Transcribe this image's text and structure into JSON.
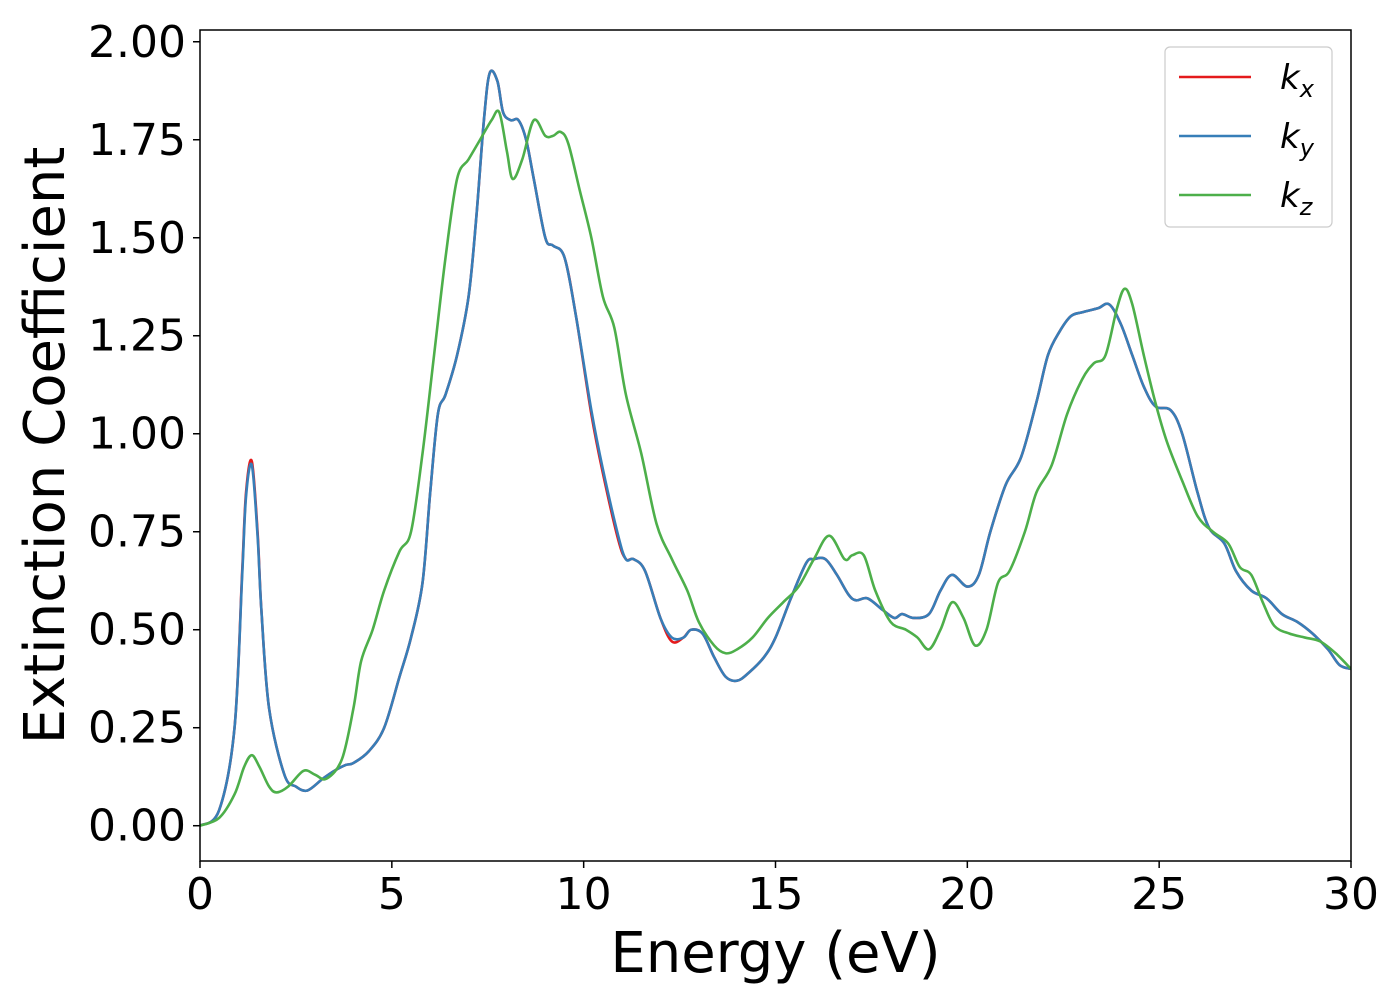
{
  "chart_data": {
    "type": "line",
    "xlabel": "Energy (eV)",
    "ylabel": "Extinction Coefficient",
    "xlim": [
      0,
      30
    ],
    "ylim": [
      -0.09,
      2.03
    ],
    "xticks": [
      0,
      5,
      10,
      15,
      20,
      25,
      30
    ],
    "yticks": [
      0.0,
      0.25,
      0.5,
      0.75,
      1.0,
      1.25,
      1.5,
      1.75,
      2.0
    ],
    "xtick_labels": [
      "0",
      "5",
      "10",
      "15",
      "20",
      "25",
      "30"
    ],
    "ytick_labels": [
      "0.00",
      "0.25",
      "0.50",
      "0.75",
      "1.00",
      "1.25",
      "1.50",
      "1.75",
      "2.00"
    ],
    "grid": false,
    "legend_position": "top-right",
    "series": [
      {
        "name": "k",
        "subscript": "x",
        "color": "#e41a1c",
        "x": [
          0,
          0.5,
          0.9,
          1.1,
          1.2,
          1.35,
          1.5,
          1.6,
          1.8,
          2.2,
          2.5,
          2.8,
          3.2,
          3.5,
          3.8,
          4.0,
          4.4,
          4.8,
          5.2,
          5.5,
          5.8,
          6.0,
          6.2,
          6.4,
          6.7,
          7.0,
          7.2,
          7.4,
          7.55,
          7.75,
          7.9,
          8.1,
          8.3,
          8.5,
          8.7,
          9.0,
          9.2,
          9.5,
          9.8,
          10.2,
          10.5,
          10.9,
          11.1,
          11.3,
          11.6,
          12.0,
          12.3,
          12.6,
          12.8,
          13.1,
          13.4,
          13.7,
          14.0,
          14.3,
          14.7,
          15.0,
          15.4,
          15.8,
          16.0,
          16.3,
          16.6,
          16.9,
          17.1,
          17.4,
          17.8,
          18.1,
          18.3,
          18.6,
          19.0,
          19.3,
          19.6,
          20.0,
          20.3,
          20.6,
          21.0,
          21.4,
          21.8,
          22.1,
          22.4,
          22.7,
          23.0,
          23.4,
          23.7,
          24.0,
          24.3,
          24.6,
          24.9,
          25.3,
          25.6,
          26.0,
          26.3,
          26.7,
          27.0,
          27.4,
          27.8,
          28.2,
          28.6,
          29.0,
          29.4,
          29.7,
          30.0
        ],
        "y": [
          0.0,
          0.04,
          0.25,
          0.65,
          0.85,
          0.93,
          0.75,
          0.55,
          0.3,
          0.13,
          0.1,
          0.09,
          0.12,
          0.14,
          0.155,
          0.16,
          0.19,
          0.25,
          0.38,
          0.48,
          0.62,
          0.85,
          1.05,
          1.1,
          1.2,
          1.35,
          1.55,
          1.8,
          1.92,
          1.9,
          1.82,
          1.8,
          1.8,
          1.75,
          1.65,
          1.5,
          1.48,
          1.45,
          1.3,
          1.05,
          0.9,
          0.73,
          0.68,
          0.68,
          0.65,
          0.53,
          0.47,
          0.48,
          0.5,
          0.49,
          0.43,
          0.38,
          0.37,
          0.39,
          0.43,
          0.48,
          0.58,
          0.67,
          0.68,
          0.68,
          0.64,
          0.59,
          0.575,
          0.58,
          0.55,
          0.53,
          0.54,
          0.53,
          0.54,
          0.6,
          0.64,
          0.61,
          0.64,
          0.75,
          0.87,
          0.94,
          1.08,
          1.2,
          1.26,
          1.3,
          1.31,
          1.32,
          1.33,
          1.28,
          1.2,
          1.12,
          1.07,
          1.06,
          1.0,
          0.85,
          0.76,
          0.72,
          0.65,
          0.6,
          0.58,
          0.54,
          0.52,
          0.49,
          0.45,
          0.41,
          0.4
        ]
      },
      {
        "name": "k",
        "subscript": "y",
        "color": "#377eb8",
        "x": [
          0,
          0.5,
          0.9,
          1.1,
          1.2,
          1.35,
          1.5,
          1.6,
          1.8,
          2.2,
          2.5,
          2.8,
          3.2,
          3.5,
          3.8,
          4.0,
          4.4,
          4.8,
          5.2,
          5.5,
          5.8,
          6.0,
          6.2,
          6.4,
          6.7,
          7.0,
          7.2,
          7.4,
          7.55,
          7.75,
          7.9,
          8.1,
          8.3,
          8.5,
          8.7,
          9.0,
          9.2,
          9.5,
          9.8,
          10.2,
          10.5,
          10.9,
          11.1,
          11.3,
          11.6,
          12.0,
          12.3,
          12.6,
          12.8,
          13.1,
          13.4,
          13.7,
          14.0,
          14.3,
          14.7,
          15.0,
          15.4,
          15.8,
          16.0,
          16.3,
          16.6,
          16.9,
          17.1,
          17.4,
          17.8,
          18.1,
          18.3,
          18.6,
          19.0,
          19.3,
          19.6,
          20.0,
          20.3,
          20.6,
          21.0,
          21.4,
          21.8,
          22.1,
          22.4,
          22.7,
          23.0,
          23.4,
          23.7,
          24.0,
          24.3,
          24.6,
          24.9,
          25.3,
          25.6,
          26.0,
          26.3,
          26.7,
          27.0,
          27.4,
          27.8,
          28.2,
          28.6,
          29.0,
          29.4,
          29.7,
          30.0
        ],
        "y": [
          0.0,
          0.04,
          0.25,
          0.64,
          0.84,
          0.92,
          0.74,
          0.55,
          0.3,
          0.13,
          0.1,
          0.09,
          0.12,
          0.14,
          0.155,
          0.16,
          0.19,
          0.25,
          0.38,
          0.48,
          0.62,
          0.85,
          1.05,
          1.1,
          1.2,
          1.35,
          1.55,
          1.8,
          1.92,
          1.9,
          1.82,
          1.8,
          1.8,
          1.75,
          1.65,
          1.5,
          1.48,
          1.45,
          1.3,
          1.06,
          0.91,
          0.74,
          0.68,
          0.68,
          0.65,
          0.53,
          0.48,
          0.48,
          0.5,
          0.49,
          0.43,
          0.38,
          0.37,
          0.39,
          0.43,
          0.48,
          0.58,
          0.67,
          0.68,
          0.68,
          0.64,
          0.59,
          0.575,
          0.58,
          0.55,
          0.53,
          0.54,
          0.53,
          0.54,
          0.6,
          0.64,
          0.61,
          0.64,
          0.75,
          0.87,
          0.94,
          1.08,
          1.2,
          1.26,
          1.3,
          1.31,
          1.32,
          1.33,
          1.28,
          1.2,
          1.12,
          1.07,
          1.06,
          1.0,
          0.85,
          0.76,
          0.72,
          0.65,
          0.6,
          0.58,
          0.54,
          0.52,
          0.49,
          0.45,
          0.41,
          0.4
        ]
      },
      {
        "name": "k",
        "subscript": "z",
        "color": "#4daf4a",
        "x": [
          0,
          0.5,
          0.9,
          1.15,
          1.35,
          1.55,
          1.8,
          2.0,
          2.3,
          2.7,
          3.0,
          3.3,
          3.7,
          4.0,
          4.2,
          4.5,
          4.8,
          5.2,
          5.5,
          5.8,
          6.1,
          6.4,
          6.7,
          7.0,
          7.3,
          7.6,
          7.8,
          8.0,
          8.15,
          8.4,
          8.7,
          9.0,
          9.2,
          9.4,
          9.6,
          9.9,
          10.2,
          10.5,
          10.8,
          11.1,
          11.5,
          11.9,
          12.3,
          12.7,
          13.0,
          13.4,
          13.7,
          14.0,
          14.4,
          14.8,
          15.2,
          15.6,
          16.0,
          16.4,
          16.8,
          17.0,
          17.3,
          17.6,
          18.0,
          18.4,
          18.7,
          19.0,
          19.3,
          19.6,
          19.9,
          20.2,
          20.5,
          20.8,
          21.1,
          21.5,
          21.8,
          22.2,
          22.6,
          23.0,
          23.3,
          23.6,
          23.9,
          24.1,
          24.3,
          24.6,
          24.9,
          25.2,
          25.6,
          26.0,
          26.4,
          26.8,
          27.1,
          27.4,
          27.7,
          28.0,
          28.4,
          28.8,
          29.2,
          29.6,
          30.0
        ],
        "y": [
          0.0,
          0.02,
          0.08,
          0.15,
          0.18,
          0.15,
          0.1,
          0.085,
          0.1,
          0.14,
          0.13,
          0.12,
          0.17,
          0.3,
          0.42,
          0.5,
          0.6,
          0.7,
          0.75,
          0.95,
          1.2,
          1.45,
          1.65,
          1.7,
          1.75,
          1.8,
          1.82,
          1.72,
          1.65,
          1.7,
          1.8,
          1.76,
          1.76,
          1.77,
          1.74,
          1.62,
          1.5,
          1.35,
          1.27,
          1.1,
          0.95,
          0.77,
          0.68,
          0.6,
          0.52,
          0.46,
          0.44,
          0.45,
          0.48,
          0.53,
          0.57,
          0.61,
          0.68,
          0.74,
          0.68,
          0.69,
          0.69,
          0.6,
          0.52,
          0.5,
          0.48,
          0.45,
          0.5,
          0.57,
          0.53,
          0.46,
          0.5,
          0.62,
          0.65,
          0.75,
          0.85,
          0.92,
          1.05,
          1.14,
          1.18,
          1.2,
          1.32,
          1.37,
          1.33,
          1.2,
          1.08,
          0.98,
          0.88,
          0.79,
          0.75,
          0.72,
          0.66,
          0.64,
          0.57,
          0.51,
          0.49,
          0.48,
          0.47,
          0.44,
          0.4
        ]
      }
    ]
  }
}
